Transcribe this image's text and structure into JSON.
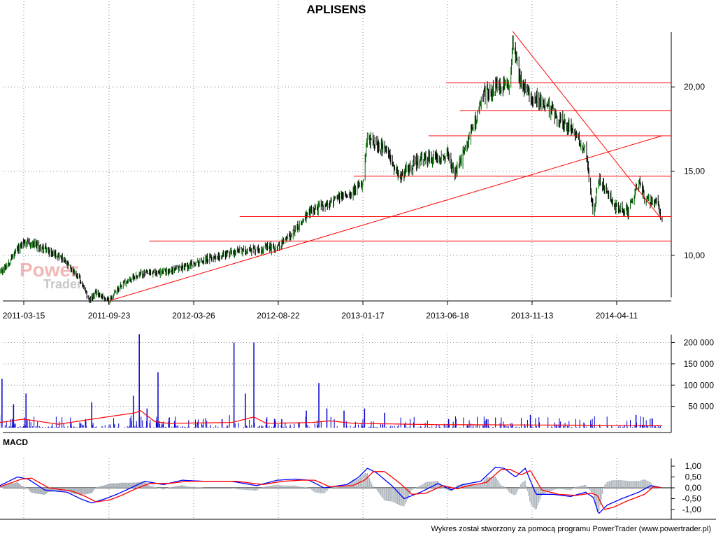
{
  "title": "APLISENS",
  "watermark": {
    "line1": "Power",
    "line2": "Trader"
  },
  "footer": "Wykres został stworzony za pomocą programu PowerTrader (www.powertrader.pl)",
  "colors": {
    "price_bar_up": "#006400",
    "price_bar_down": "#000000",
    "trend_lines": "#ff0000",
    "volume_bars": "#0000cc",
    "volume_avg": "#ff0000",
    "macd_line": "#0000ff",
    "signal_line": "#ff0000",
    "histogram": "#a8b0b8",
    "grid": "#888888"
  },
  "chart_data": [
    {
      "type": "line",
      "title": "APLISENS",
      "x_tick_labels": [
        "2011-03-15",
        "2011-09-23",
        "2012-03-26",
        "2012-08-22",
        "2013-01-17",
        "2013-06-18",
        "2013-11-13",
        "2014-04-11"
      ],
      "y_tick_labels": [
        "10,00",
        "15,00",
        "20,00"
      ],
      "ylim": [
        7.5,
        23.5
      ],
      "grid": "dotted, vertical and horizontal",
      "price_keypoints": {
        "dates": [
          "2011-01-20",
          "2011-03-15",
          "2011-04-20",
          "2011-06-01",
          "2011-07-15",
          "2011-08-10",
          "2011-08-25",
          "2011-09-23",
          "2011-10-20",
          "2011-12-01",
          "2012-01-20",
          "2012-03-26",
          "2012-05-10",
          "2012-06-20",
          "2012-08-22",
          "2012-09-20",
          "2012-10-20",
          "2012-11-20",
          "2013-01-08",
          "2013-01-17",
          "2013-01-25",
          "2013-02-25",
          "2013-03-25",
          "2013-04-20",
          "2013-05-20",
          "2013-06-18",
          "2013-07-01",
          "2013-07-20",
          "2013-08-20",
          "2013-09-15",
          "2013-10-05",
          "2013-10-10",
          "2013-10-25",
          "2013-11-13",
          "2013-12-20",
          "2014-01-20",
          "2014-02-15",
          "2014-03-01",
          "2014-03-10",
          "2014-04-11",
          "2014-05-01",
          "2014-05-20",
          "2014-06-01",
          "2014-06-20",
          "2014-06-30"
        ],
        "values": [
          8.9,
          10.8,
          10.5,
          10.0,
          8.8,
          7.3,
          7.8,
          7.3,
          8.3,
          8.9,
          9.0,
          9.5,
          10.0,
          10.3,
          10.5,
          11.5,
          12.7,
          13.1,
          14.0,
          14.2,
          16.9,
          16.3,
          14.7,
          15.5,
          15.8,
          16.0,
          14.8,
          16.4,
          19.5,
          20.0,
          20.0,
          23.0,
          20.0,
          19.5,
          18.5,
          17.5,
          16.2,
          12.5,
          14.5,
          12.8,
          12.6,
          14.3,
          13.3,
          13.2,
          12.1
        ]
      },
      "support_resistance_levels": [
        10.85,
        12.3,
        14.7,
        17.1,
        18.6,
        20.25
      ],
      "trend_lines": [
        {
          "name": "uptrend",
          "from": {
            "date": "2011-09-23",
            "value": 7.3
          },
          "to": {
            "date": "2014-06-30",
            "value": 17.1
          }
        },
        {
          "name": "downtrend",
          "from": {
            "date": "2013-10-10",
            "value": 23.3
          },
          "to": {
            "date": "2014-06-30",
            "value": 12.1
          }
        }
      ]
    },
    {
      "type": "bar",
      "y_tick_labels": [
        "50 000",
        "100 000",
        "150 000",
        "200 000"
      ],
      "ylim": [
        0,
        225000
      ],
      "volume_spikes": {
        "dates": [
          "2011-01-25",
          "2011-02-20",
          "2011-03-20",
          "2011-08-01",
          "2011-08-15",
          "2011-11-15",
          "2011-11-28",
          "2011-12-15",
          "2012-01-08",
          "2012-05-15",
          "2012-06-05",
          "2012-06-25",
          "2012-07-10",
          "2012-08-28",
          "2012-10-10",
          "2012-11-01",
          "2012-11-15",
          "2012-12-15",
          "2013-01-20",
          "2013-02-25",
          "2013-06-20",
          "2013-08-25",
          "2013-11-10",
          "2014-05-15"
        ],
        "values": [
          115000,
          55000,
          80000,
          20000,
          60000,
          75000,
          220000,
          45000,
          130000,
          20000,
          200000,
          80000,
          200000,
          20000,
          40000,
          105000,
          45000,
          40000,
          45000,
          35000,
          20000,
          20000,
          30000,
          30000
        ]
      },
      "volume_average_line": {
        "dates": [
          "2011-01-20",
          "2011-03-15",
          "2011-06-01",
          "2011-11-20",
          "2011-12-01",
          "2012-01-01",
          "2012-02-01",
          "2012-06-01",
          "2012-07-10",
          "2012-08-01",
          "2012-10-20",
          "2012-11-20",
          "2013-01-01",
          "2013-06-01",
          "2014-06-30"
        ],
        "values": [
          12000,
          20000,
          8000,
          35000,
          40000,
          14000,
          10000,
          12000,
          25000,
          10000,
          12000,
          16000,
          10000,
          7000,
          5000
        ]
      }
    },
    {
      "type": "line",
      "label": "MACD",
      "y_tick_labels": [
        "1,00",
        "0,50",
        "0,00",
        "-0,50",
        "-1,00"
      ],
      "ylim": [
        -1.35,
        1.2
      ],
      "series": [
        {
          "role": "macd",
          "dates": [
            "2011-01-20",
            "2011-03-01",
            "2011-03-25",
            "2011-05-01",
            "2011-06-20",
            "2011-07-20",
            "2011-08-15",
            "2011-09-15",
            "2011-10-10",
            "2011-11-10",
            "2011-12-10",
            "2012-01-20",
            "2012-03-01",
            "2012-04-15",
            "2012-06-01",
            "2012-07-15",
            "2012-08-20",
            "2012-09-20",
            "2012-10-15",
            "2012-11-10",
            "2012-12-20",
            "2013-01-10",
            "2013-01-25",
            "2013-02-10",
            "2013-03-10",
            "2013-04-01",
            "2013-05-01",
            "2013-06-01",
            "2013-06-25",
            "2013-07-15",
            "2013-08-15",
            "2013-09-10",
            "2013-09-25",
            "2013-10-15",
            "2013-11-01",
            "2013-11-20",
            "2013-12-20",
            "2014-01-20",
            "2014-02-15",
            "2014-03-01",
            "2014-03-10",
            "2014-03-25",
            "2014-04-20",
            "2014-05-20",
            "2014-06-10",
            "2014-06-30"
          ],
          "values": [
            0.1,
            0.5,
            0.4,
            -0.1,
            -0.2,
            -0.5,
            -0.7,
            -0.5,
            -0.3,
            0.0,
            0.3,
            0.15,
            0.35,
            0.3,
            0.3,
            0.1,
            0.35,
            0.4,
            0.35,
            0.0,
            0.15,
            0.5,
            0.9,
            0.7,
            0.1,
            -0.5,
            -0.2,
            0.2,
            -0.1,
            0.15,
            0.3,
            0.95,
            0.9,
            0.5,
            0.9,
            -0.3,
            -0.3,
            -0.4,
            -0.2,
            -0.45,
            -1.2,
            -0.8,
            -0.5,
            -0.2,
            0.1,
            0.0
          ]
        },
        {
          "role": "signal",
          "dates": [
            "2011-01-20",
            "2011-03-10",
            "2011-04-01",
            "2011-05-10",
            "2011-07-01",
            "2011-08-01",
            "2011-08-25",
            "2011-09-25",
            "2011-10-20",
            "2011-11-20",
            "2011-12-20",
            "2012-02-01",
            "2012-03-10",
            "2012-04-20",
            "2012-06-10",
            "2012-07-25",
            "2012-08-30",
            "2012-09-30",
            "2012-10-25",
            "2012-11-20",
            "2012-12-30",
            "2013-01-20",
            "2013-02-05",
            "2013-02-25",
            "2013-03-25",
            "2013-04-15",
            "2013-05-10",
            "2013-06-10",
            "2013-07-05",
            "2013-07-25",
            "2013-08-25",
            "2013-09-20",
            "2013-10-05",
            "2013-10-25",
            "2013-11-10",
            "2013-11-30",
            "2013-12-30",
            "2014-01-30",
            "2014-02-25",
            "2014-03-08",
            "2014-03-20",
            "2014-04-05",
            "2014-04-30",
            "2014-05-30",
            "2014-06-15",
            "2014-06-30"
          ],
          "values": [
            0.05,
            0.4,
            0.45,
            0.0,
            -0.15,
            -0.4,
            -0.65,
            -0.55,
            -0.35,
            -0.05,
            0.2,
            0.2,
            0.3,
            0.3,
            0.3,
            0.15,
            0.3,
            0.35,
            0.35,
            0.05,
            0.1,
            0.35,
            0.75,
            0.75,
            0.2,
            -0.3,
            -0.25,
            0.1,
            -0.05,
            0.1,
            0.25,
            0.85,
            0.85,
            0.6,
            0.8,
            -0.1,
            -0.3,
            -0.35,
            -0.25,
            -0.35,
            -1.0,
            -0.9,
            -0.6,
            -0.3,
            0.05,
            0.0
          ]
        }
      ]
    }
  ]
}
